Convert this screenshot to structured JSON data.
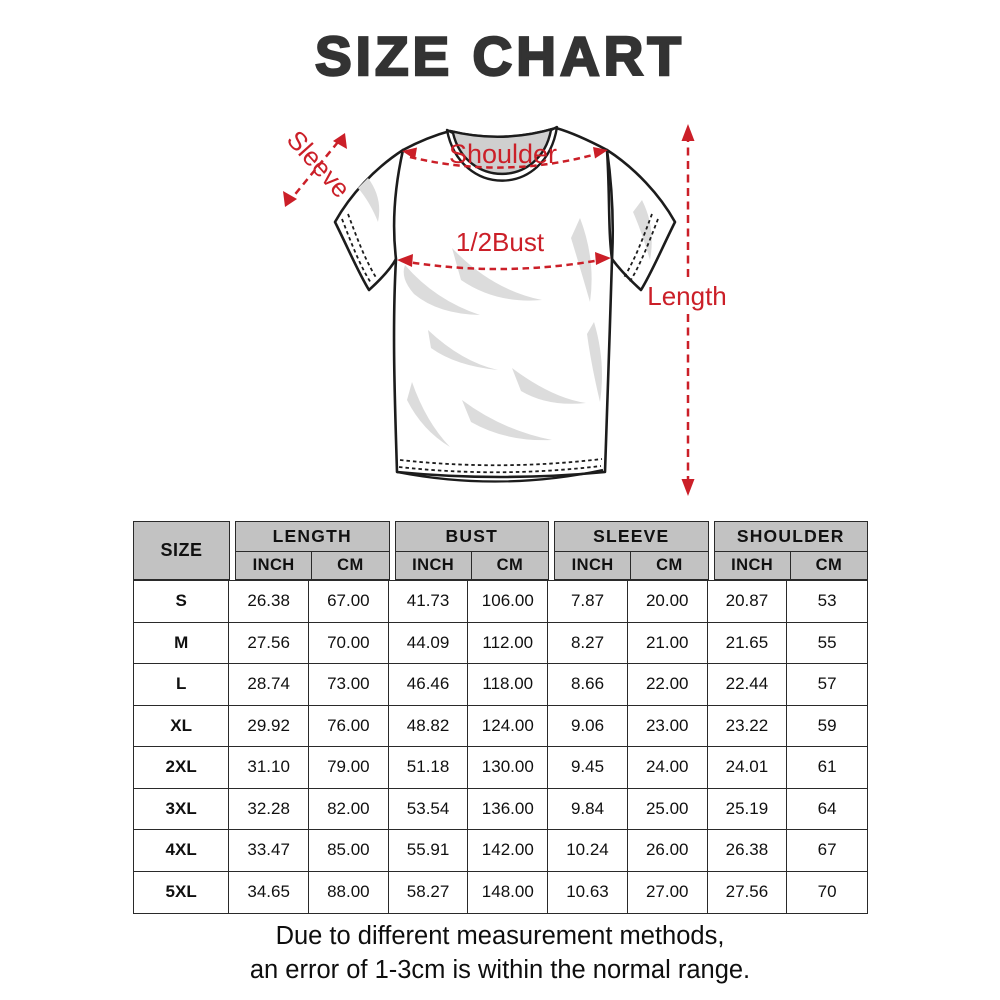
{
  "page": {
    "title": "SIZE CHART"
  },
  "diagram": {
    "labels": {
      "sleeve": "Sleeve",
      "shoulder": "Shoulder",
      "half_bust": "1/2Bust",
      "length": "Length"
    },
    "annotation_color": "#cb1f28"
  },
  "table": {
    "corner_header": "SIZE",
    "groups": [
      "LENGTH",
      "BUST",
      "SLEEVE",
      "SHOULDER"
    ],
    "units": [
      "INCH",
      "CM"
    ],
    "header_bg": "#c2c2c2",
    "border_color": "#2a2a2a"
  },
  "chart_data": {
    "type": "table",
    "title": "SIZE CHART",
    "columns": [
      "SIZE",
      "LENGTH INCH",
      "LENGTH CM",
      "BUST INCH",
      "BUST CM",
      "SLEEVE INCH",
      "SLEEVE CM",
      "SHOULDER INCH",
      "SHOULDER CM"
    ],
    "rows": [
      [
        "S",
        "26.38",
        "67.00",
        "41.73",
        "106.00",
        "7.87",
        "20.00",
        "20.87",
        "53"
      ],
      [
        "M",
        "27.56",
        "70.00",
        "44.09",
        "112.00",
        "8.27",
        "21.00",
        "21.65",
        "55"
      ],
      [
        "L",
        "28.74",
        "73.00",
        "46.46",
        "118.00",
        "8.66",
        "22.00",
        "22.44",
        "57"
      ],
      [
        "XL",
        "29.92",
        "76.00",
        "48.82",
        "124.00",
        "9.06",
        "23.00",
        "23.22",
        "59"
      ],
      [
        "2XL",
        "31.10",
        "79.00",
        "51.18",
        "130.00",
        "9.45",
        "24.00",
        "24.01",
        "61"
      ],
      [
        "3XL",
        "32.28",
        "82.00",
        "53.54",
        "136.00",
        "9.84",
        "25.00",
        "25.19",
        "64"
      ],
      [
        "4XL",
        "33.47",
        "85.00",
        "55.91",
        "142.00",
        "10.24",
        "26.00",
        "26.38",
        "67"
      ],
      [
        "5XL",
        "34.65",
        "88.00",
        "58.27",
        "148.00",
        "10.63",
        "27.00",
        "27.56",
        "70"
      ]
    ]
  },
  "footer": {
    "line1": "Due to different measurement methods,",
    "line2": "an error of 1-3cm is within the normal range."
  }
}
